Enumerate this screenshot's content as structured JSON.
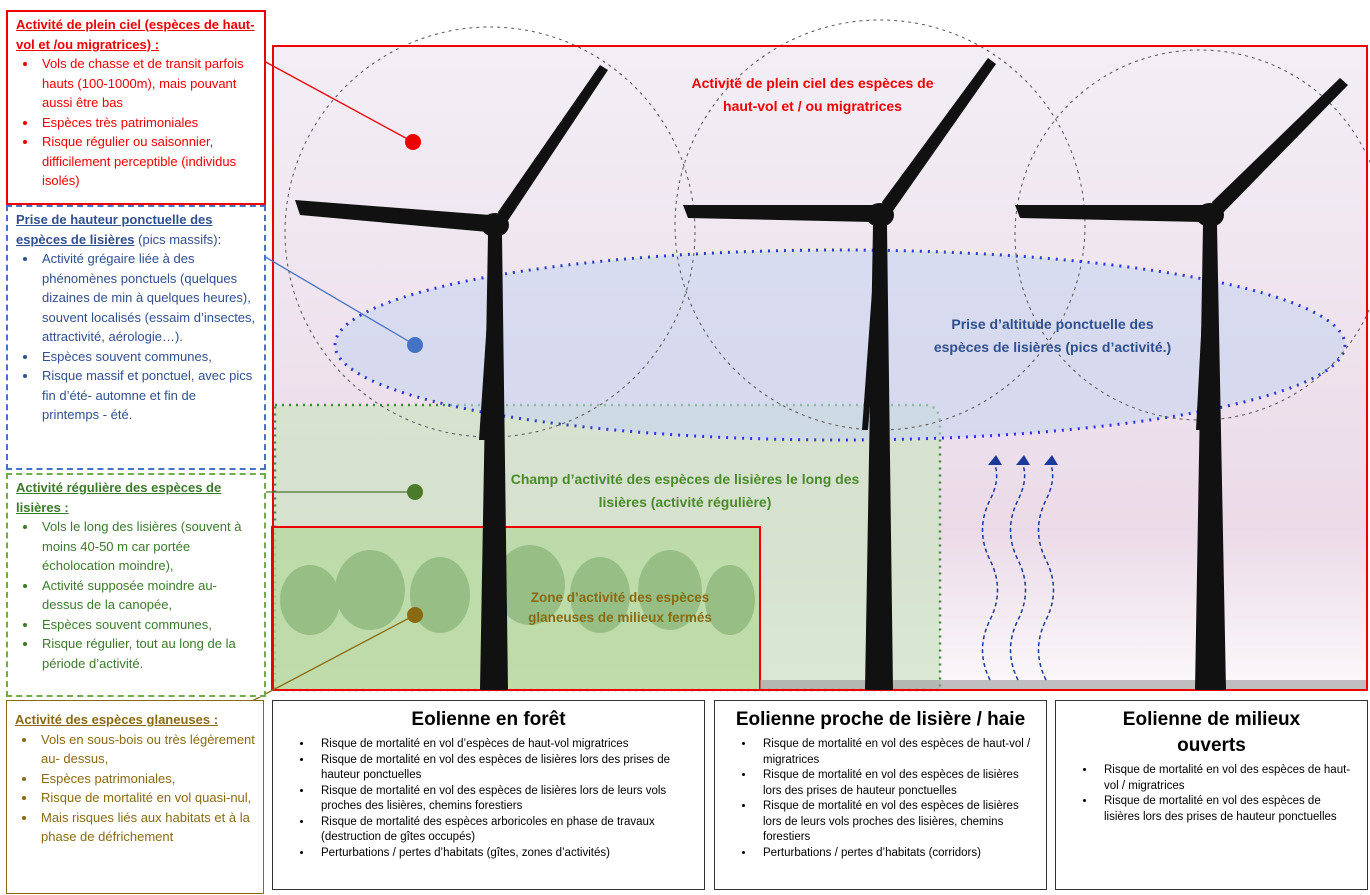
{
  "legend_boxes": [
    {
      "title": "Activité de plein ciel (espèces de haut-vol et /ou migratrices) :",
      "bullets": [
        "Vols de chasse et de transit parfois hauts (100-1000m), mais pouvant aussi être bas",
        "Espèces très patrimoniales",
        "Risque régulier ou saisonnier, difficilement perceptible (individus isolés)"
      ]
    },
    {
      "title": "Prise de hauteur ponctuelle des espèces de lisières",
      "title_suffix": " (pics massifs):",
      "bullets": [
        "Activité grégaire liée à des phénomènes ponctuels (quelques dizaines de min à quelques heures), souvent localisés (essaim d’insectes, attractivité, aérologie…).",
        "Espèces souvent communes,",
        "Risque massif et ponctuel, avec pics fin d’été- automne et fin de printemps - été."
      ]
    },
    {
      "title": "Activité régulière des espèces de lisières :",
      "bullets": [
        "Vols le long des lisières (souvent à moins 40-50 m car portée écholocation moindre),",
        "Activité supposée moindre au-dessus de la canopée,",
        "Espèces souvent communes,",
        "Risque régulier, tout au long de la période d’activité."
      ]
    },
    {
      "title": "Activité des espèces glaneuses :",
      "bullets": [
        "Vols en sous-bois ou très légèrement au- dessus,",
        "Espèces patrimoniales,",
        "Risque de mortalité en vol quasi-nul,",
        "Mais risques liés aux habitats et à la phase de défrichement"
      ]
    }
  ],
  "zone_labels": [
    "Activité de plein ciel des espèces de haut-vol et / ou migratrices",
    "Prise d’altitude ponctuelle des espèces de lisières (pics d’activité.)",
    "Champ d’activité des espèces de lisières le long des lisières (activité régulière)",
    "Zone d’activité des espèces glaneuses de milieux fermés"
  ],
  "turbine_boxes": [
    {
      "title": "Eolienne en forêt",
      "bullets": [
        "Risque de mortalité en vol d’espèces de haut-vol migratrices",
        "Risque de mortalité en vol des espèces de lisières lors des prises de hauteur ponctuelles",
        "Risque de mortalité en vol des espèces de lisières lors de leurs vols proches des lisières, chemins forestiers",
        "Risque de mortalité des espèces arboricoles en phase de travaux (destruction de gîtes occupés)",
        "Perturbations / pertes d’habitats (gîtes, zones d’activités)"
      ]
    },
    {
      "title": "Eolienne proche de lisière / haie",
      "bullets": [
        "Risque de mortalité en vol des espèces de haut-vol / migratrices",
        "Risque de mortalité en vol des espèces de lisières lors des prises de hauteur ponctuelles",
        "Risque de mortalité en vol des espèces de lisières lors de leurs vols proches des lisières, chemins forestiers",
        "Perturbations / pertes d’habitats (corridors)"
      ]
    },
    {
      "title": "Eolienne de milieux ouverts",
      "bullets": [
        "Risque de mortalité en vol des espèces de haut-vol / migratrices",
        "Risque de mortalité en vol des espèces de lisières lors des prises de hauteur ponctuelles"
      ]
    }
  ]
}
